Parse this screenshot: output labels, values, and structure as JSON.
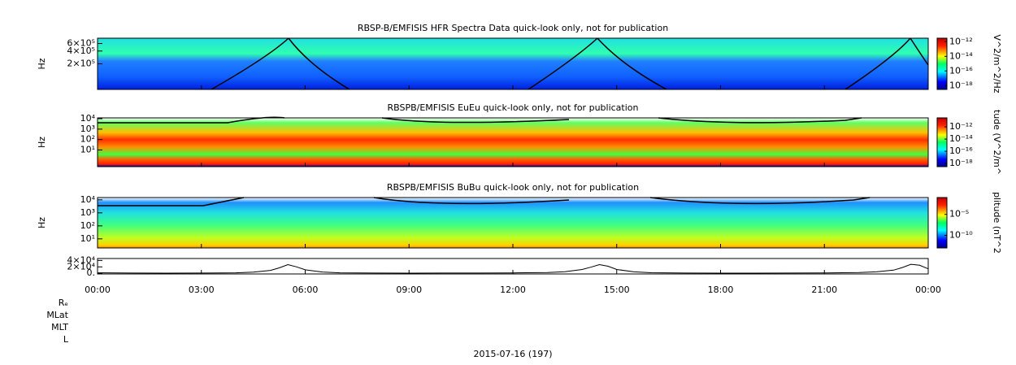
{
  "panels": [
    {
      "type": "spectrogram",
      "title": "RBSP-B/EMFISIS  HFR Spectra Data quick-look only, not for publication",
      "ylabel": "Hz",
      "log": true,
      "ylim": [
        50000,
        800000
      ],
      "yticks": [
        {
          "value": 200000,
          "label": "2×10⁵"
        },
        {
          "value": 400000,
          "label": "4×10⁵"
        },
        {
          "value": 600000,
          "label": "6×10⁵"
        }
      ],
      "colorbar_label": "V^2/m^2/Hz",
      "clim": [
        3e-19,
        3e-12
      ],
      "cticks": [
        {
          "value": 1e-12,
          "label": "10⁻¹²"
        },
        {
          "value": 1e-14,
          "label": "10⁻¹⁴"
        },
        {
          "value": 1e-16,
          "label": "10⁻¹⁶"
        },
        {
          "value": 1e-18,
          "label": "10⁻¹⁸"
        }
      ]
    },
    {
      "type": "spectrogram",
      "title": "RBSPB/EMFISIS  EuEu quick-look only, not for publication",
      "ylabel": "Hz",
      "log": true,
      "ylim": [
        0.25,
        12000
      ],
      "yticks": [
        {
          "value": 10,
          "label": "10¹"
        },
        {
          "value": 100,
          "label": "10²"
        },
        {
          "value": 1000,
          "label": "10³"
        },
        {
          "value": 10000,
          "label": "10⁴"
        }
      ],
      "colorbar_label": "tude (V^2/m^",
      "clim": [
        3e-19,
        3e-11
      ],
      "cticks": [
        {
          "value": 1e-12,
          "label": "10⁻¹²"
        },
        {
          "value": 1e-14,
          "label": "10⁻¹⁴"
        },
        {
          "value": 1e-16,
          "label": "10⁻¹⁶"
        },
        {
          "value": 1e-18,
          "label": "10⁻¹⁸"
        }
      ]
    },
    {
      "type": "spectrogram",
      "title": "RBSPB/EMFISIS  BuBu quick-look only, not for publication",
      "ylabel": "Hz",
      "log": true,
      "ylim": [
        2,
        15000
      ],
      "yticks": [
        {
          "value": 10,
          "label": "10¹"
        },
        {
          "value": 100,
          "label": "10²"
        },
        {
          "value": 1000,
          "label": "10³"
        },
        {
          "value": 10000,
          "label": "10⁴"
        }
      ],
      "colorbar_label": "plitude (nT^2",
      "clim": [
        1e-13,
        0.1
      ],
      "cticks": [
        {
          "value": 1e-05,
          "label": "10⁻⁵"
        },
        {
          "value": 1e-10,
          "label": "10⁻¹⁰"
        }
      ]
    },
    {
      "type": "line",
      "ylim": [
        -2000,
        46000
      ],
      "yticks": [
        {
          "value": 0,
          "label": "0."
        },
        {
          "value": 20000,
          "label": "2×10⁴"
        },
        {
          "value": 40000,
          "label": "4×10⁴"
        }
      ],
      "x": [
        0,
        1,
        2,
        3,
        4,
        4.5,
        5,
        5.25,
        5.5,
        5.75,
        6,
        6.5,
        7,
        8,
        9,
        10,
        11,
        12,
        13,
        13.5,
        14,
        14.25,
        14.5,
        14.75,
        15,
        15.5,
        16,
        17,
        18,
        19,
        20,
        21,
        22,
        22.5,
        23,
        23.25,
        23.5,
        23.75,
        24
      ],
      "values": [
        1500,
        800,
        600,
        700,
        1500,
        3500,
        9000,
        17000,
        27000,
        20000,
        11000,
        4000,
        1600,
        800,
        600,
        700,
        900,
        1200,
        2500,
        5000,
        12000,
        19000,
        27000,
        22000,
        12000,
        4500,
        1800,
        900,
        600,
        600,
        800,
        1000,
        2200,
        4500,
        10000,
        18000,
        28000,
        25000,
        14000
      ]
    }
  ],
  "xaxis": {
    "xlim": [
      0,
      24
    ],
    "xticks": [
      {
        "value": 0,
        "label": "00:00"
      },
      {
        "value": 3,
        "label": "03:00"
      },
      {
        "value": 6,
        "label": "06:00"
      },
      {
        "value": 9,
        "label": "09:00"
      },
      {
        "value": 12,
        "label": "12:00"
      },
      {
        "value": 15,
        "label": "15:00"
      },
      {
        "value": 18,
        "label": "18:00"
      },
      {
        "value": 21,
        "label": "21:00"
      },
      {
        "value": 24,
        "label": "00:00"
      }
    ]
  },
  "ephemeris_labels": [
    "Rₑ",
    "MLat",
    "MLT",
    "L"
  ],
  "date": "2015-07-16 (197)"
}
